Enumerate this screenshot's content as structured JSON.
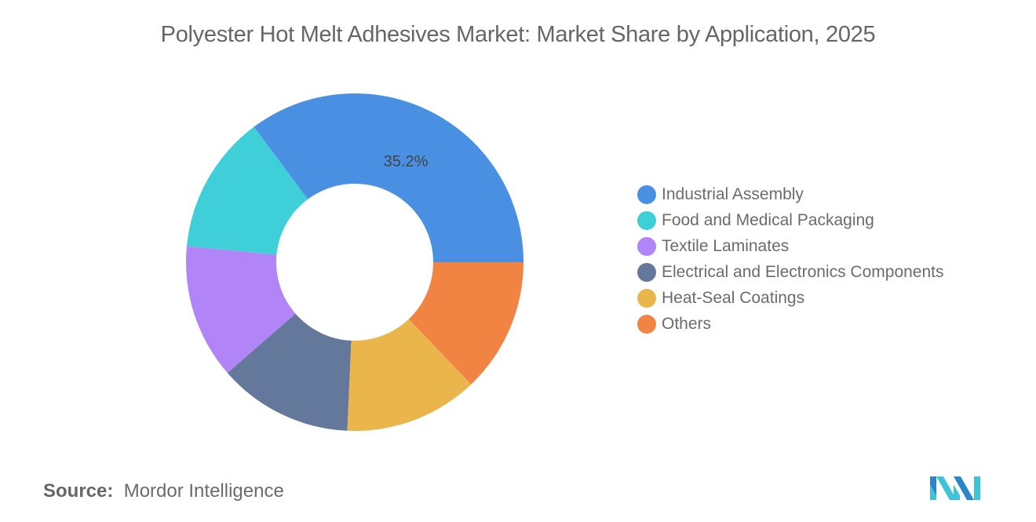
{
  "header": {
    "title": "Polyester Hot Melt Adhesives Market: Market Share by Application, 2025"
  },
  "footer": {
    "source_label": "Source:",
    "source_value": "Mordor Intelligence",
    "logo": "mordor-intelligence-logo"
  },
  "chart_data": {
    "type": "pie",
    "subtype": "donut",
    "title": "Polyester Hot Melt Adhesives Market: Market Share by Application, 2025",
    "categories": [
      "Industrial Assembly",
      "Food and Medical Packaging",
      "Textile Laminates",
      "Electrical and Electronics Components",
      "Heat-Seal Coatings",
      "Others"
    ],
    "values": [
      35.2,
      13.3,
      12.9,
      12.9,
      12.8,
      12.9
    ],
    "colors": [
      "#4a90e2",
      "#3fcfd9",
      "#b184f7",
      "#64789b",
      "#eab64b",
      "#f28443"
    ],
    "data_labels": [
      {
        "category": "Industrial Assembly",
        "text": "35.2%"
      }
    ],
    "legend_position": "right",
    "unit": "%"
  },
  "legend": {
    "items": [
      {
        "label": "Industrial Assembly",
        "color": "#4a90e2"
      },
      {
        "label": "Food and Medical Packaging",
        "color": "#3fcfd9"
      },
      {
        "label": "Textile Laminates",
        "color": "#b184f7"
      },
      {
        "label": "Electrical and Electronics Components",
        "color": "#64789b"
      },
      {
        "label": "Heat-Seal Coatings",
        "color": "#eab64b"
      },
      {
        "label": "Others",
        "color": "#f28443"
      }
    ]
  }
}
